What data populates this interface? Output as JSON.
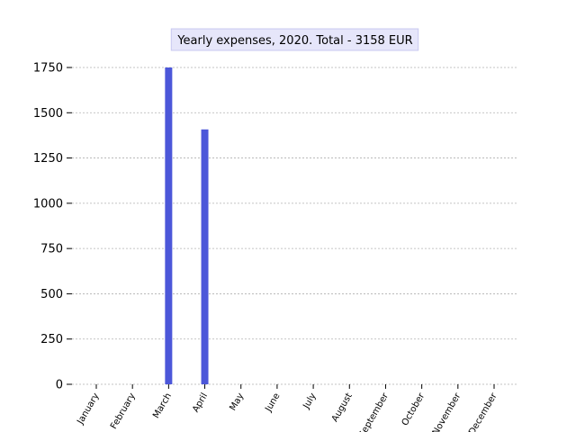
{
  "chart_data": {
    "type": "bar",
    "title": "Yearly expenses, 2020. Total - 3158 EUR",
    "xlabel": "",
    "ylabel": "",
    "categories": [
      "January",
      "February",
      "March",
      "April",
      "May",
      "June",
      "July",
      "August",
      "September",
      "October",
      "November",
      "December"
    ],
    "values": [
      0,
      0,
      1750,
      1408,
      0,
      0,
      0,
      0,
      0,
      0,
      0,
      0
    ],
    "ylim": [
      0,
      1750
    ],
    "yticks": [
      0,
      250,
      500,
      750,
      1000,
      1250,
      1500,
      1750
    ],
    "grid": true,
    "legend": "none",
    "colors": {
      "bar": "#4c57d9",
      "grid": "#b0b0b0",
      "title_box_fill": "#e6e6fa",
      "title_box_border": "#c8c8f0"
    }
  }
}
